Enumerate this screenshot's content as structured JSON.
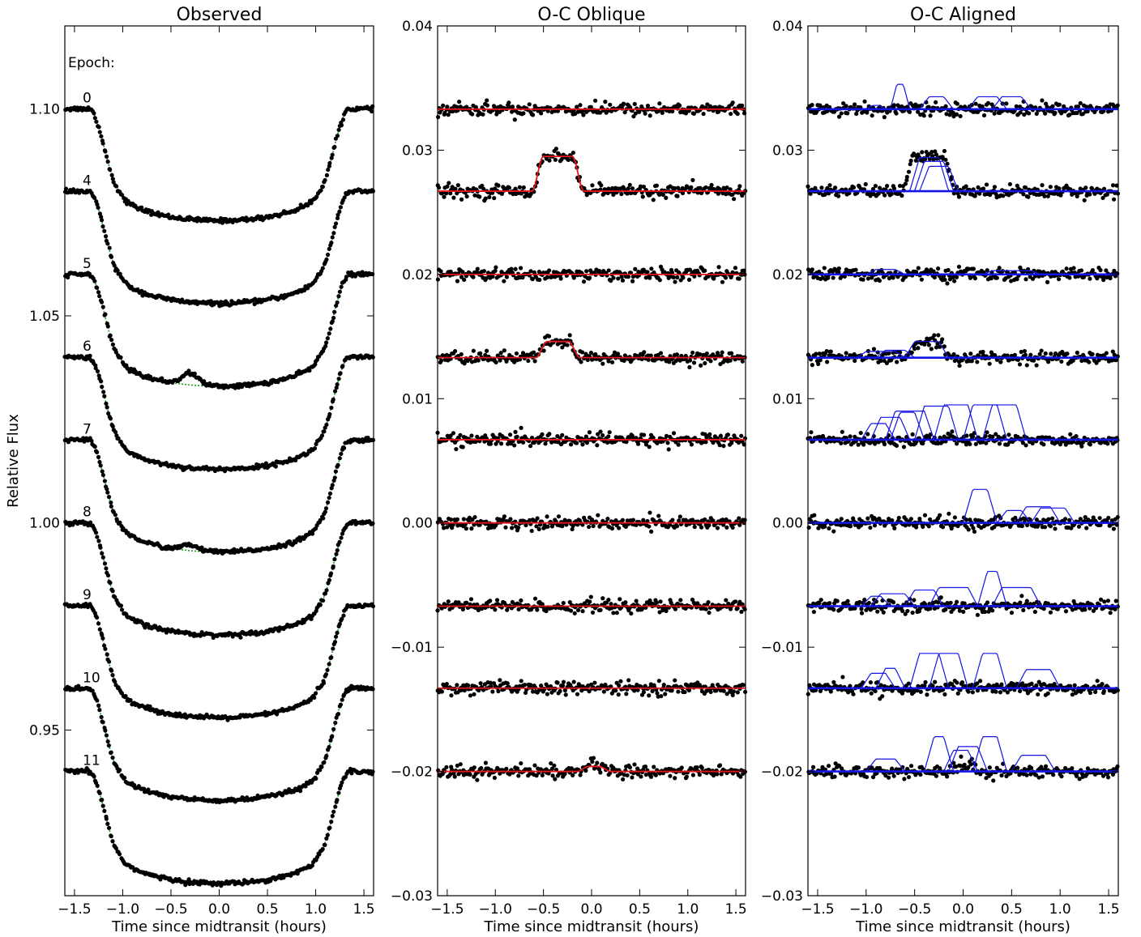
{
  "figure": {
    "ylabel": "Relative Flux",
    "epoch_heading": "Epoch:"
  },
  "chart_data": [
    {
      "type": "scatter",
      "panel": "observed",
      "title": "Observed",
      "xlabel": "Time since midtransit (hours)",
      "ylabel": "Relative Flux",
      "xlim": [
        -1.6,
        1.6
      ],
      "ylim": [
        0.91,
        1.12
      ],
      "x_ticks": [
        -1.5,
        -1.0,
        -0.5,
        0.0,
        0.5,
        1.0,
        1.5
      ],
      "x_tick_labels": [
        "−1.5",
        "−1.0",
        "−0.5",
        "0.0",
        "0.5",
        "1.0",
        "1.5"
      ],
      "y_ticks": [
        0.95,
        1.0,
        1.05,
        1.1
      ],
      "y_tick_labels": [
        "0.95",
        "1.00",
        "1.05",
        "1.10"
      ],
      "colors": {
        "points": "#000000",
        "model": "#1a9a1a"
      },
      "transit": {
        "depth": 0.027,
        "ingress_start": 1.35,
        "full_start": 1.02
      },
      "epochs": [
        {
          "label": "0",
          "baseline": 1.1,
          "bump": null
        },
        {
          "label": "4",
          "baseline": 1.08,
          "bump": null
        },
        {
          "label": "5",
          "baseline": 1.06,
          "bump": {
            "center": -0.3,
            "half_width": 0.15,
            "height": 0.0028
          }
        },
        {
          "label": "6",
          "baseline": 1.04,
          "bump": null
        },
        {
          "label": "7",
          "baseline": 1.02,
          "bump": {
            "center": -0.3,
            "half_width": 0.15,
            "height": 0.0013
          }
        },
        {
          "label": "8",
          "baseline": 1.0,
          "bump": null
        },
        {
          "label": "9",
          "baseline": 0.98,
          "bump": null
        },
        {
          "label": "10",
          "baseline": 0.96,
          "bump": null
        },
        {
          "label": "11",
          "baseline": 0.94,
          "bump": null
        }
      ]
    },
    {
      "type": "scatter",
      "panel": "oblique",
      "title": "O-C Oblique",
      "xlabel": "Time since midtransit (hours)",
      "xlim": [
        -1.6,
        1.6
      ],
      "ylim": [
        -0.03,
        0.04
      ],
      "x_ticks": [
        -1.5,
        -1.0,
        -0.5,
        0.0,
        0.5,
        1.0,
        1.5
      ],
      "x_tick_labels": [
        "−1.5",
        "−1.0",
        "−0.5",
        "0.0",
        "0.5",
        "1.0",
        "1.5"
      ],
      "y_ticks": [
        -0.03,
        -0.02,
        -0.01,
        0.0,
        0.01,
        0.02,
        0.03,
        0.04
      ],
      "y_tick_labels": [
        "−0.03",
        "−0.02",
        "−0.01",
        "0.00",
        "0.01",
        "0.02",
        "0.03",
        "0.04"
      ],
      "colors": {
        "points": "#000000",
        "model": "#e8141a"
      },
      "offsets": [
        0.0333,
        0.0267,
        0.02,
        0.0133,
        0.0067,
        0.0,
        -0.0067,
        -0.0133,
        -0.02
      ],
      "bumps": [
        null,
        {
          "start": -0.62,
          "end": -0.08,
          "height": 0.0028
        },
        null,
        {
          "start": -0.58,
          "end": -0.12,
          "height": 0.0013
        },
        null,
        null,
        null,
        null,
        {
          "start": -0.15,
          "end": 0.2,
          "height": 0.0004
        }
      ]
    },
    {
      "type": "scatter",
      "panel": "aligned",
      "title": "O-C Aligned",
      "xlabel": "Time since midtransit (hours)",
      "xlim": [
        -1.6,
        1.6
      ],
      "ylim": [
        -0.03,
        0.04
      ],
      "x_ticks": [
        -1.5,
        -1.0,
        -0.5,
        0.0,
        0.5,
        1.0,
        1.5
      ],
      "x_tick_labels": [
        "−1.5",
        "−1.0",
        "−0.5",
        "0.0",
        "0.5",
        "1.0",
        "1.5"
      ],
      "y_ticks": [
        -0.03,
        -0.02,
        -0.01,
        0.0,
        0.01,
        0.02,
        0.03,
        0.04
      ],
      "y_tick_labels": [
        "−0.03",
        "−0.02",
        "−0.01",
        "0.00",
        "0.01",
        "0.02",
        "0.03",
        "0.04"
      ],
      "colors": {
        "points": "#000000",
        "model": "#1414e6"
      },
      "offsets": [
        0.0333,
        0.0267,
        0.02,
        0.0133,
        0.0067,
        0.0,
        -0.0067,
        -0.0133,
        -0.02
      ],
      "model_bumps": [
        [
          [
            -0.75,
            -0.55,
            0.002
          ],
          [
            -0.45,
            -0.1,
            0.001
          ],
          [
            0.05,
            0.45,
            0.001
          ],
          [
            0.3,
            0.7,
            0.001
          ],
          [
            -1.0,
            -0.8,
            0.0003
          ]
        ],
        [
          [
            -0.55,
            -0.15,
            0.0027
          ],
          [
            -0.5,
            -0.1,
            0.0024
          ],
          [
            -0.45,
            -0.05,
            0.002
          ]
        ],
        [
          [
            -1.0,
            -0.6,
            0.0004
          ],
          [
            0.2,
            0.8,
            0.0003
          ]
        ],
        [
          [
            -0.6,
            -0.15,
            0.0013
          ],
          [
            -1.1,
            -0.6,
            0.0005
          ],
          [
            -0.9,
            -0.5,
            0.0006
          ]
        ],
        [
          [
            -1.05,
            -0.7,
            0.0013
          ],
          [
            -0.95,
            -0.55,
            0.0018
          ],
          [
            -0.75,
            -0.4,
            0.0022
          ],
          [
            -0.5,
            -0.05,
            0.0027
          ],
          [
            -0.3,
            0.15,
            0.0028
          ],
          [
            0.0,
            0.45,
            0.0028
          ],
          [
            0.2,
            0.65,
            0.0028
          ],
          [
            -0.8,
            -0.3,
            0.0023
          ]
        ],
        [
          [
            0.0,
            0.35,
            0.0027
          ],
          [
            0.35,
            0.7,
            0.001
          ],
          [
            0.55,
            1.0,
            0.0013
          ],
          [
            0.7,
            1.15,
            0.0012
          ]
        ],
        [
          [
            0.15,
            0.45,
            0.0028
          ],
          [
            -0.6,
            -0.2,
            0.0013
          ],
          [
            -0.35,
            0.15,
            0.0015
          ],
          [
            -0.95,
            -0.5,
            0.001
          ],
          [
            0.3,
            0.8,
            0.0015
          ],
          [
            -1.05,
            -0.75,
            0.0008
          ]
        ],
        [
          [
            -0.35,
            0.05,
            0.0028
          ],
          [
            -0.55,
            -0.15,
            0.0028
          ],
          [
            -0.9,
            -0.6,
            0.0016
          ],
          [
            -1.05,
            -0.7,
            0.0012
          ],
          [
            0.1,
            0.45,
            0.0028
          ],
          [
            0.55,
            1.0,
            0.0015
          ]
        ],
        [
          [
            -0.4,
            -0.1,
            0.0028
          ],
          [
            -0.15,
            0.25,
            0.002
          ],
          [
            0.1,
            0.45,
            0.0028
          ],
          [
            -1.0,
            -0.6,
            0.001
          ],
          [
            0.5,
            0.95,
            0.0013
          ],
          [
            -0.2,
            0.15,
            0.0017
          ]
        ]
      ]
    }
  ]
}
